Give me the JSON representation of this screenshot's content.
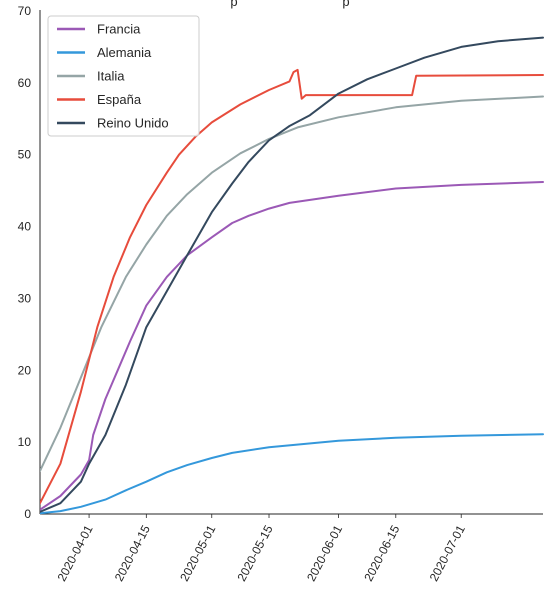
{
  "chart_data": {
    "type": "line",
    "title_fragment": "p                             p",
    "ylim": [
      0,
      70
    ],
    "yticks": [
      "0",
      "10",
      "20",
      "30",
      "40",
      "50",
      "60",
      "70"
    ],
    "x_start": "2020-03-20",
    "x_end": "2020-07-21",
    "xticks": [
      "2020-04-01",
      "2020-04-15",
      "2020-05-01",
      "2020-05-15",
      "2020-06-01",
      "2020-06-15",
      "2020-07-01"
    ],
    "grid": false,
    "legend_position": "top-left",
    "series": [
      {
        "name": "Francia",
        "color": "#9b59b6",
        "points": [
          [
            "2020-03-20",
            0.6
          ],
          [
            "2020-03-25",
            2.5
          ],
          [
            "2020-03-30",
            5.5
          ],
          [
            "2020-04-01",
            7.5
          ],
          [
            "2020-04-02",
            11
          ],
          [
            "2020-04-05",
            16
          ],
          [
            "2020-04-08",
            20
          ],
          [
            "2020-04-11",
            24
          ],
          [
            "2020-04-15",
            29
          ],
          [
            "2020-04-20",
            33
          ],
          [
            "2020-04-25",
            36
          ],
          [
            "2020-05-01",
            38.5
          ],
          [
            "2020-05-06",
            40.5
          ],
          [
            "2020-05-10",
            41.5
          ],
          [
            "2020-05-15",
            42.5
          ],
          [
            "2020-05-20",
            43.3
          ],
          [
            "2020-06-01",
            44.3
          ],
          [
            "2020-06-15",
            45.3
          ],
          [
            "2020-07-01",
            45.8
          ],
          [
            "2020-07-21",
            46.2
          ]
        ]
      },
      {
        "name": "Alemania",
        "color": "#3498db",
        "points": [
          [
            "2020-03-20",
            0.1
          ],
          [
            "2020-03-25",
            0.4
          ],
          [
            "2020-03-30",
            1.0
          ],
          [
            "2020-04-05",
            2.0
          ],
          [
            "2020-04-10",
            3.3
          ],
          [
            "2020-04-15",
            4.5
          ],
          [
            "2020-04-20",
            5.8
          ],
          [
            "2020-04-25",
            6.8
          ],
          [
            "2020-05-01",
            7.8
          ],
          [
            "2020-05-06",
            8.5
          ],
          [
            "2020-05-15",
            9.3
          ],
          [
            "2020-06-01",
            10.2
          ],
          [
            "2020-06-15",
            10.6
          ],
          [
            "2020-07-01",
            10.9
          ],
          [
            "2020-07-21",
            11.1
          ]
        ]
      },
      {
        "name": "Italia",
        "color": "#95a5a6",
        "points": [
          [
            "2020-03-20",
            6
          ],
          [
            "2020-03-25",
            12
          ],
          [
            "2020-03-30",
            19
          ],
          [
            "2020-04-04",
            26
          ],
          [
            "2020-04-10",
            33
          ],
          [
            "2020-04-15",
            37.5
          ],
          [
            "2020-04-20",
            41.5
          ],
          [
            "2020-04-25",
            44.5
          ],
          [
            "2020-05-01",
            47.5
          ],
          [
            "2020-05-08",
            50.2
          ],
          [
            "2020-05-15",
            52.2
          ],
          [
            "2020-05-22",
            53.8
          ],
          [
            "2020-06-01",
            55.2
          ],
          [
            "2020-06-15",
            56.6
          ],
          [
            "2020-07-01",
            57.5
          ],
          [
            "2020-07-21",
            58.1
          ]
        ]
      },
      {
        "name": "España",
        "color": "#e74c3c",
        "points": [
          [
            "2020-03-20",
            1.5
          ],
          [
            "2020-03-25",
            7
          ],
          [
            "2020-03-30",
            17
          ],
          [
            "2020-04-03",
            26
          ],
          [
            "2020-04-07",
            33
          ],
          [
            "2020-04-11",
            38.5
          ],
          [
            "2020-04-15",
            43
          ],
          [
            "2020-04-20",
            47.5
          ],
          [
            "2020-04-23",
            50
          ],
          [
            "2020-04-27",
            52.5
          ],
          [
            "2020-05-01",
            54.5
          ],
          [
            "2020-05-08",
            57
          ],
          [
            "2020-05-15",
            59
          ],
          [
            "2020-05-20",
            60.2
          ],
          [
            "2020-05-21",
            61.5
          ],
          [
            "2020-05-22",
            61.8
          ],
          [
            "2020-05-23",
            57.8
          ],
          [
            "2020-05-24",
            58.3
          ],
          [
            "2020-06-19",
            58.3
          ],
          [
            "2020-06-20",
            61.0
          ],
          [
            "2020-07-21",
            61.1
          ]
        ]
      },
      {
        "name": "Reino Unido",
        "color": "#34495e",
        "points": [
          [
            "2020-03-20",
            0.3
          ],
          [
            "2020-03-25",
            1.5
          ],
          [
            "2020-03-30",
            4.5
          ],
          [
            "2020-04-01",
            7
          ],
          [
            "2020-04-05",
            11
          ],
          [
            "2020-04-10",
            18
          ],
          [
            "2020-04-15",
            26
          ],
          [
            "2020-04-20",
            31
          ],
          [
            "2020-04-25",
            36
          ],
          [
            "2020-05-01",
            42
          ],
          [
            "2020-05-06",
            46
          ],
          [
            "2020-05-10",
            49
          ],
          [
            "2020-05-15",
            52
          ],
          [
            "2020-05-20",
            54
          ],
          [
            "2020-05-25",
            55.5
          ],
          [
            "2020-06-01",
            58.5
          ],
          [
            "2020-06-08",
            60.5
          ],
          [
            "2020-06-15",
            62
          ],
          [
            "2020-06-22",
            63.5
          ],
          [
            "2020-07-01",
            65
          ],
          [
            "2020-07-10",
            65.8
          ],
          [
            "2020-07-21",
            66.3
          ]
        ]
      }
    ]
  }
}
